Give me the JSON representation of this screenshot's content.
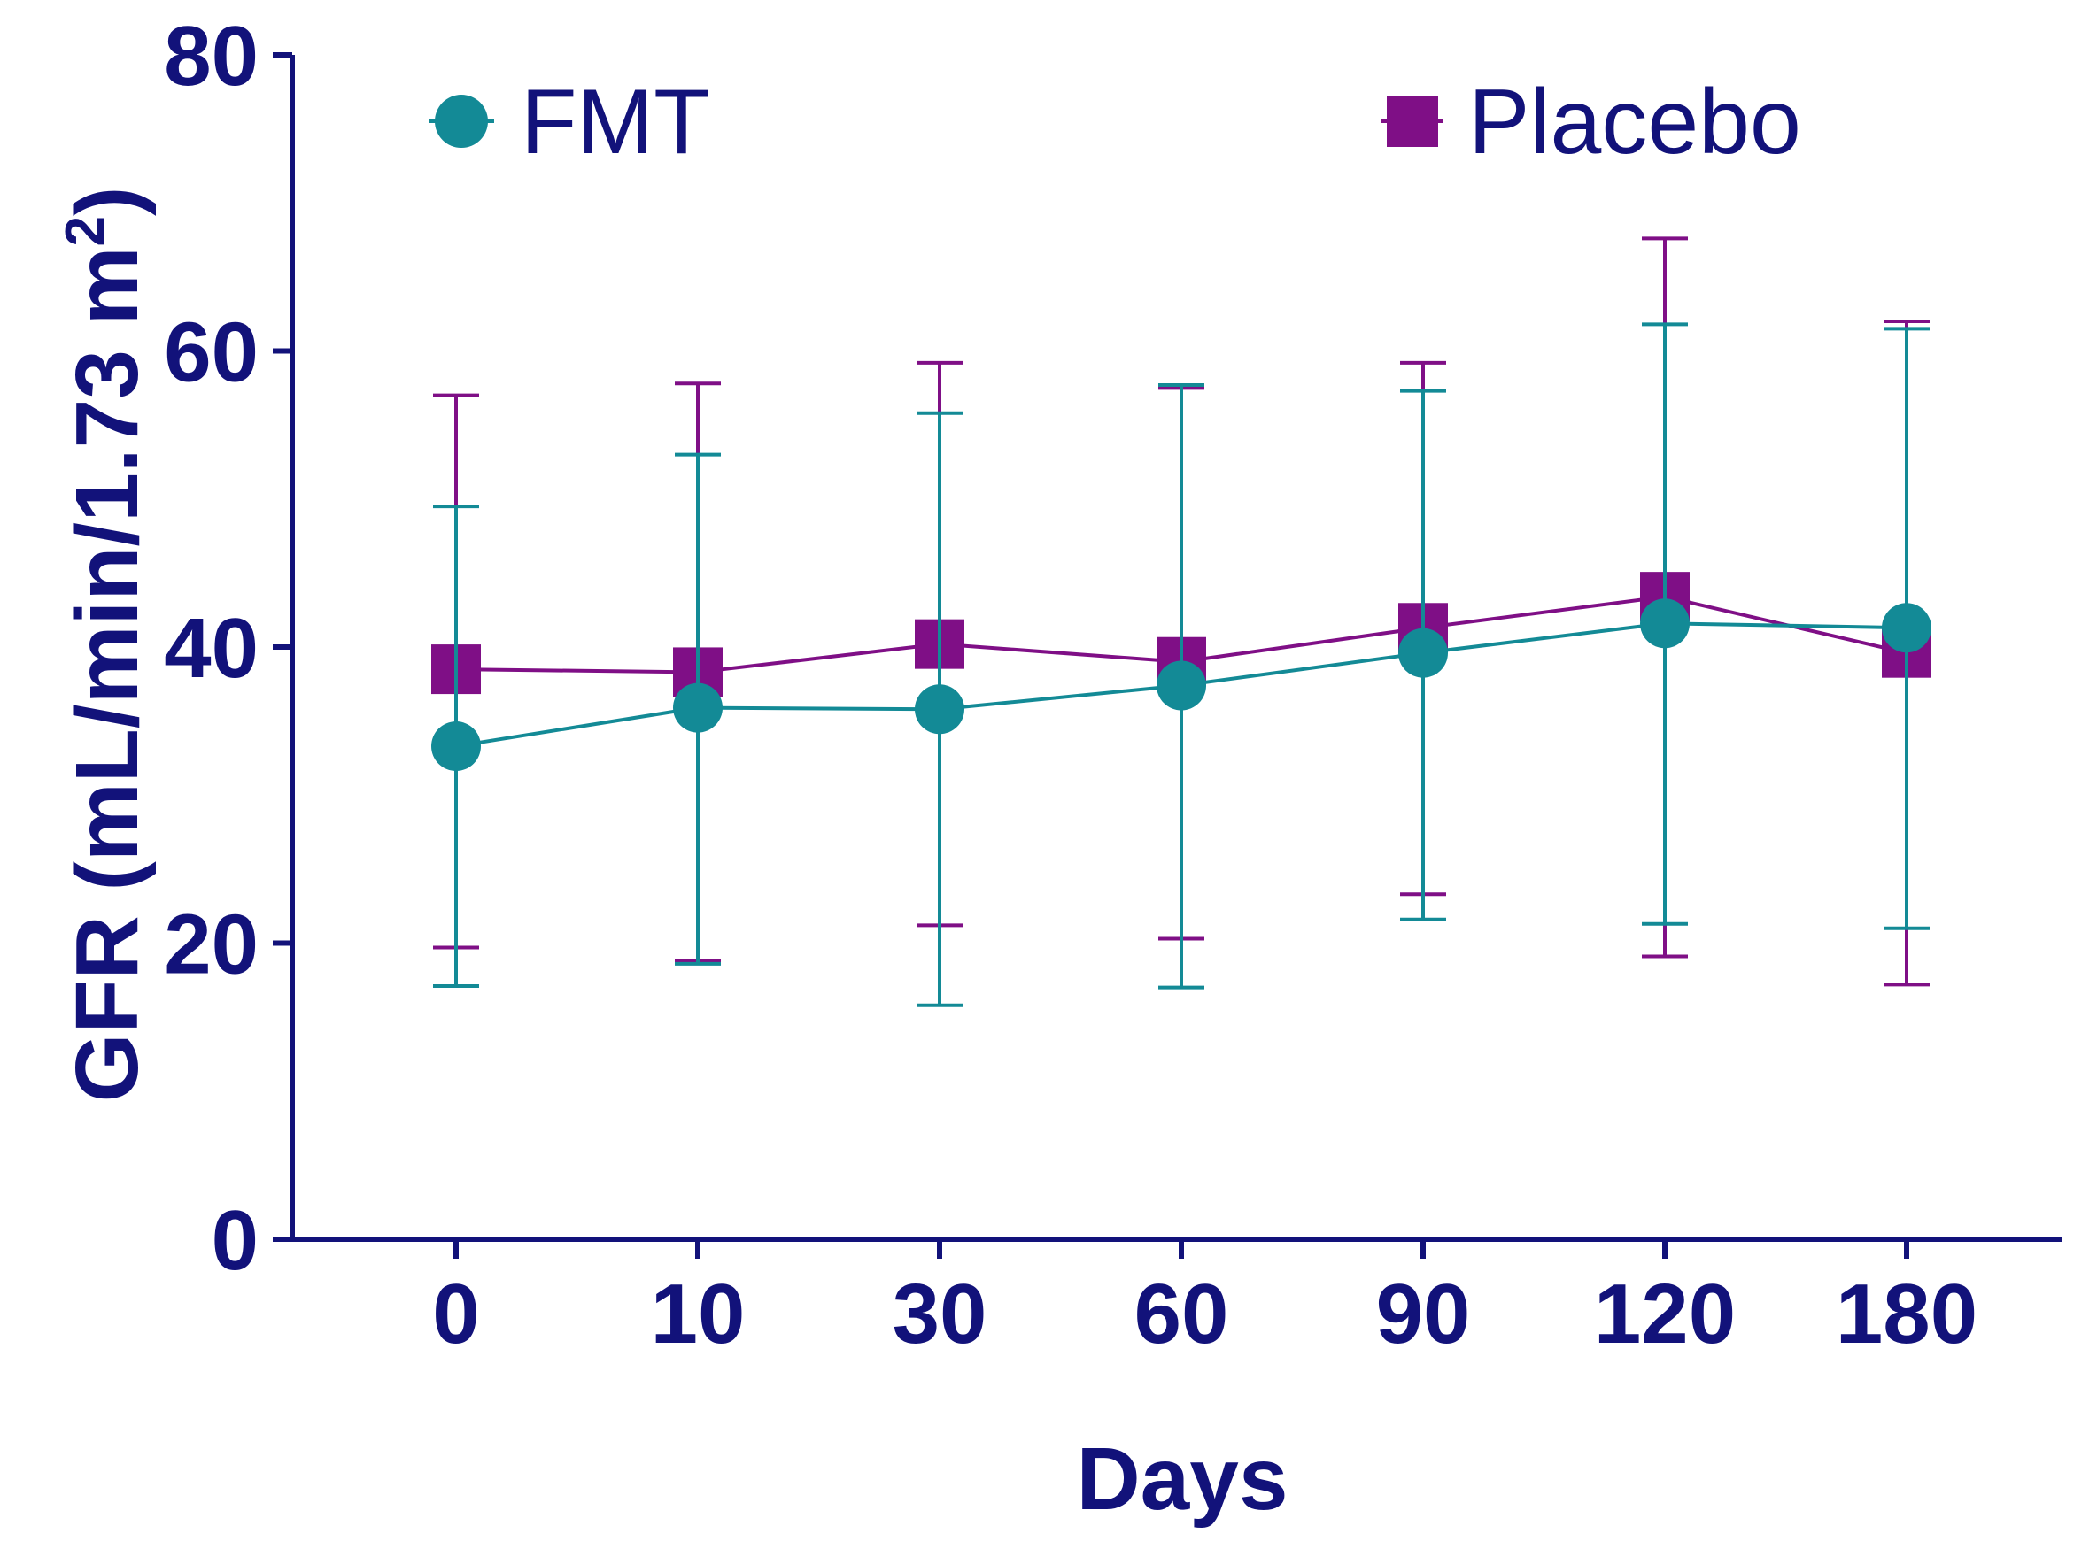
{
  "chart_data": {
    "type": "line",
    "title": "",
    "xlabel": "Days",
    "ylabel": {
      "main": "GFR (mL/min/1.73 m",
      "superscript": "2",
      "close": ")"
    },
    "categories": [
      "0",
      "10",
      "30",
      "60",
      "90",
      "120",
      "180"
    ],
    "yticks": [
      "0",
      "20",
      "40",
      "60",
      "80"
    ],
    "ylim": [
      0,
      80
    ],
    "legend_position": "top",
    "series": [
      {
        "name": "FMT",
        "marker": "circle",
        "color": "#138a96",
        "values": [
          33.3,
          35.9,
          35.8,
          37.4,
          39.6,
          41.6,
          41.3
        ],
        "err_upper": [
          49.5,
          53.0,
          55.8,
          57.7,
          57.3,
          61.8,
          61.5
        ],
        "err_lower": [
          17.1,
          18.6,
          15.8,
          17.0,
          21.6,
          21.3,
          21.0
        ]
      },
      {
        "name": "Placebo",
        "marker": "square",
        "color": "#7f0f86",
        "values": [
          38.5,
          38.3,
          40.2,
          39.0,
          41.3,
          43.4,
          39.6
        ],
        "err_upper": [
          57.0,
          57.8,
          59.2,
          57.5,
          59.2,
          67.6,
          62.0
        ],
        "err_lower": [
          19.7,
          18.8,
          21.2,
          20.3,
          23.3,
          19.1,
          17.2
        ]
      }
    ]
  }
}
